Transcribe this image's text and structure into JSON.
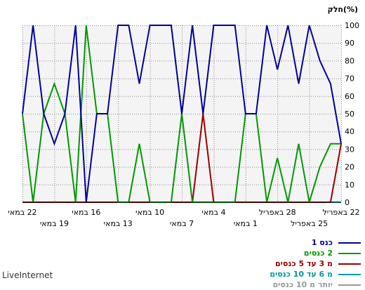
{
  "chart_data": {
    "type": "line",
    "ylabel": "חלק(%)",
    "ylim": [
      0,
      100
    ],
    "yticks": [
      0,
      10,
      20,
      30,
      40,
      50,
      60,
      70,
      80,
      90,
      100
    ],
    "grid": true,
    "legend_position": "bottom-right",
    "x_tick_labels_row1": [
      "22 במאי",
      "16 במאי",
      "10 במאי",
      "4 במאי",
      "28 באפריל",
      "22 באפריל"
    ],
    "x_tick_labels_row2": [
      "19 במאי",
      "13 במאי",
      "7 במאי",
      "1 במאי",
      "25 באפריל"
    ],
    "series": [
      {
        "name": "כנס 1",
        "color": "#000099",
        "values": [
          50,
          100,
          50,
          33,
          50,
          100,
          0,
          50,
          50,
          100,
          100,
          67,
          100,
          100,
          100,
          50,
          100,
          50,
          100,
          100,
          100,
          50,
          50,
          100,
          75,
          100,
          67,
          100,
          80,
          67,
          33
        ]
      },
      {
        "name": "2 כנסים",
        "color": "#009900",
        "values": [
          50,
          0,
          50,
          67,
          50,
          0,
          100,
          50,
          50,
          0,
          0,
          33,
          0,
          0,
          0,
          50,
          0,
          0,
          0,
          0,
          0,
          50,
          50,
          0,
          25,
          0,
          33,
          0,
          20,
          33,
          33
        ]
      },
      {
        "name": "מ 3 עד 5 כנסים",
        "color": "#990000",
        "values": [
          0,
          0,
          0,
          0,
          0,
          0,
          0,
          0,
          0,
          0,
          0,
          0,
          0,
          0,
          0,
          0,
          0,
          50,
          0,
          0,
          0,
          0,
          0,
          0,
          0,
          0,
          0,
          0,
          0,
          0,
          33
        ]
      },
      {
        "name": "מ 6 עד 10 כנסים",
        "color": "#009999",
        "values": [
          0,
          0,
          0,
          0,
          0,
          0,
          0,
          0,
          0,
          0,
          0,
          0,
          0,
          0,
          0,
          0,
          0,
          0,
          0,
          0,
          0,
          0,
          0,
          0,
          0,
          0,
          0,
          0,
          0,
          0,
          0
        ]
      },
      {
        "name": "יותר מ 10 כנסים",
        "color": "#999999",
        "values": [
          0,
          0,
          0,
          0,
          0,
          0,
          0,
          0,
          0,
          0,
          0,
          0,
          0,
          0,
          0,
          0,
          0,
          0,
          0,
          0,
          0,
          0,
          0,
          0,
          0,
          0,
          0,
          0,
          0,
          0,
          0
        ]
      }
    ]
  },
  "brand": "LiveInternet"
}
